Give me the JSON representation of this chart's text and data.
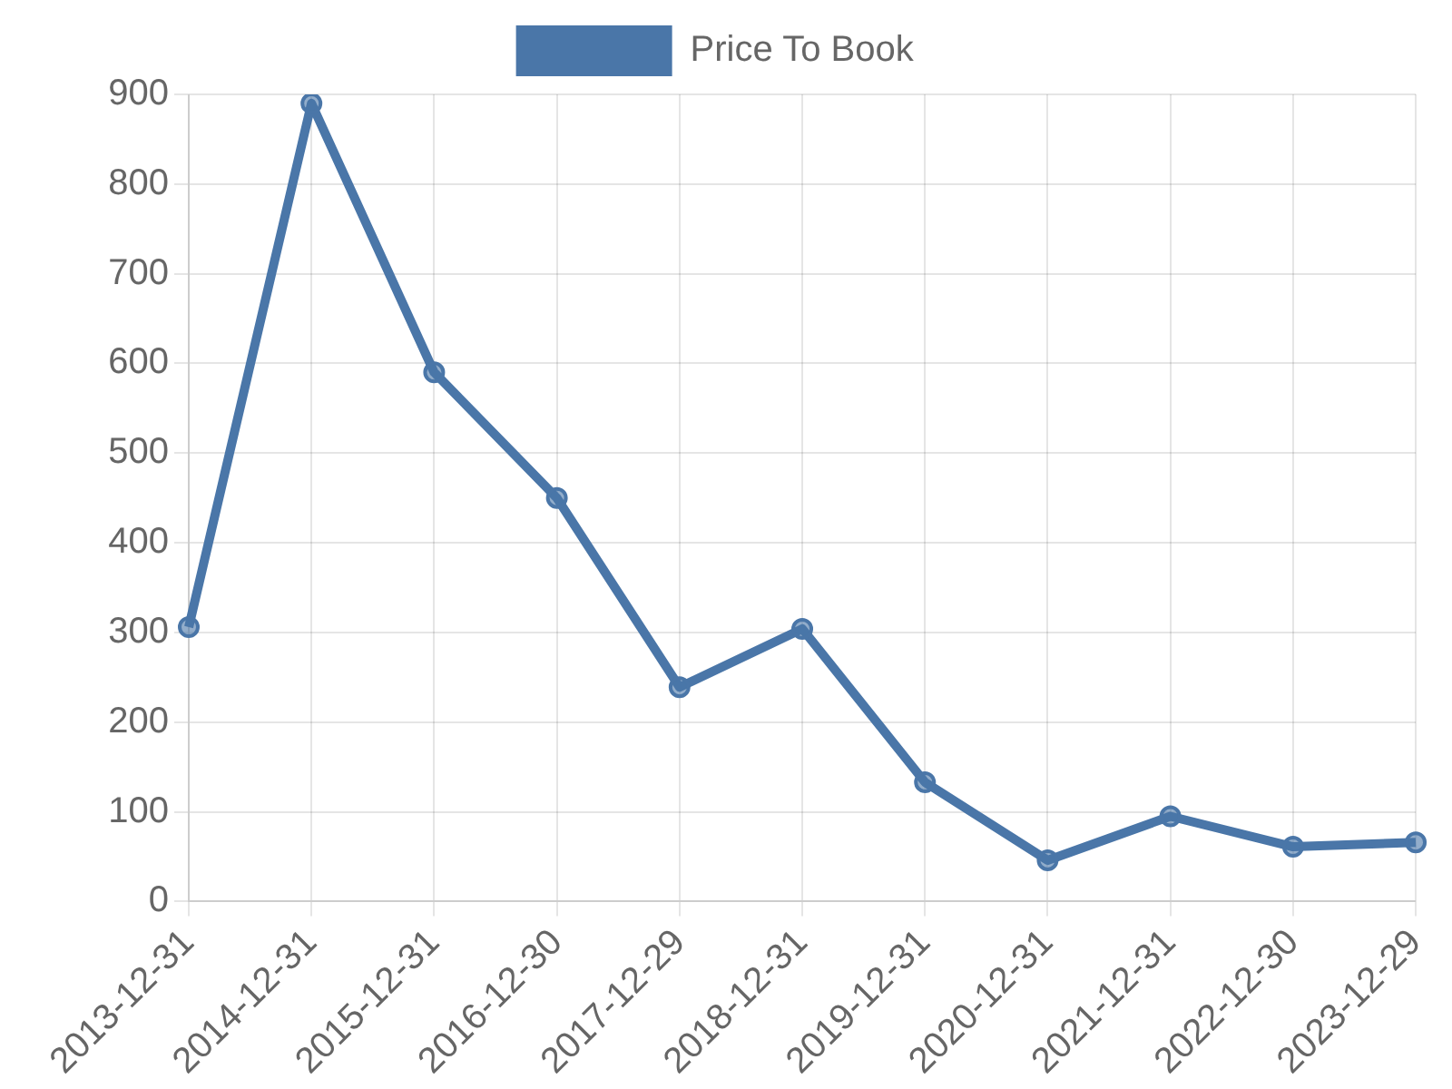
{
  "chart_data": {
    "type": "line",
    "categories": [
      "2013-12-31",
      "2014-12-31",
      "2015-12-31",
      "2016-12-30",
      "2017-12-29",
      "2018-12-31",
      "2019-12-31",
      "2020-12-31",
      "2021-12-31",
      "2022-12-30",
      "2023-12-29"
    ],
    "series": [
      {
        "name": "Price To Book",
        "color": "#4a76a8",
        "values": [
          306,
          890,
          590,
          450,
          239,
          304,
          133,
          46,
          95,
          61,
          66
        ]
      }
    ],
    "ylim": [
      0,
      900
    ],
    "yticks": [
      0,
      100,
      200,
      300,
      400,
      500,
      600,
      700,
      800,
      900
    ],
    "grid": true,
    "legend": "top",
    "marker": "circle",
    "line_style": "solid"
  }
}
